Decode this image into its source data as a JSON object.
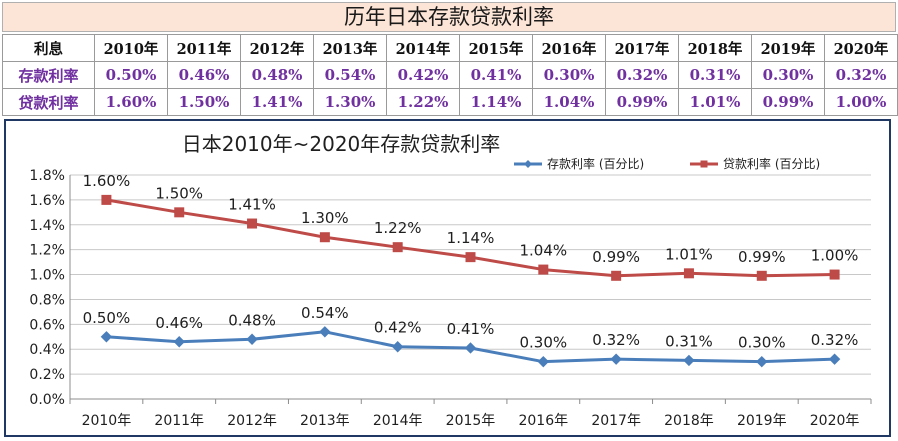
{
  "page_title": "历年日本存款贷款利率",
  "table": {
    "header_label": "利息",
    "years": [
      "2010年",
      "2011年",
      "2012年",
      "2013年",
      "2014年",
      "2015年",
      "2016年",
      "2017年",
      "2018年",
      "2019年",
      "2020年"
    ],
    "rows": [
      {
        "label": "存款利率",
        "values": [
          "0.50%",
          "0.46%",
          "0.48%",
          "0.54%",
          "0.42%",
          "0.41%",
          "0.30%",
          "0.32%",
          "0.31%",
          "0.30%",
          "0.32%"
        ]
      },
      {
        "label": "贷款利率",
        "values": [
          "1.60%",
          "1.50%",
          "1.41%",
          "1.30%",
          "1.22%",
          "1.14%",
          "1.04%",
          "0.99%",
          "1.01%",
          "0.99%",
          "1.00%"
        ]
      }
    ]
  },
  "chart_data": {
    "type": "line",
    "title": "日本2010年~2020年存款贷款利率",
    "categories": [
      "2010年",
      "2011年",
      "2012年",
      "2013年",
      "2014年",
      "2015年",
      "2016年",
      "2017年",
      "2018年",
      "2019年",
      "2020年"
    ],
    "series": [
      {
        "name": "存款利率 (百分比)",
        "color": "#4a7ebb",
        "marker": "diamond",
        "values": [
          0.5,
          0.46,
          0.48,
          0.54,
          0.42,
          0.41,
          0.3,
          0.32,
          0.31,
          0.3,
          0.32
        ],
        "labels": [
          "0.50%",
          "0.46%",
          "0.48%",
          "0.54%",
          "0.42%",
          "0.41%",
          "0.30%",
          "0.32%",
          "0.31%",
          "0.30%",
          "0.32%"
        ]
      },
      {
        "name": "贷款利率 (百分比)",
        "color": "#be4b48",
        "marker": "square",
        "values": [
          1.6,
          1.5,
          1.41,
          1.3,
          1.22,
          1.14,
          1.04,
          0.99,
          1.01,
          0.99,
          1.0
        ],
        "labels": [
          "1.60%",
          "1.50%",
          "1.41%",
          "1.30%",
          "1.22%",
          "1.14%",
          "1.04%",
          "0.99%",
          "1.01%",
          "0.99%",
          "1.00%"
        ]
      }
    ],
    "ylim": [
      0,
      1.8
    ],
    "yticks": [
      "0.0%",
      "0.2%",
      "0.4%",
      "0.6%",
      "0.8%",
      "1.0%",
      "1.2%",
      "1.4%",
      "1.6%",
      "1.8%"
    ],
    "ytick_values": [
      0,
      0.2,
      0.4,
      0.6,
      0.8,
      1.0,
      1.2,
      1.4,
      1.6,
      1.8
    ],
    "grid": true,
    "legend": "top-right"
  }
}
